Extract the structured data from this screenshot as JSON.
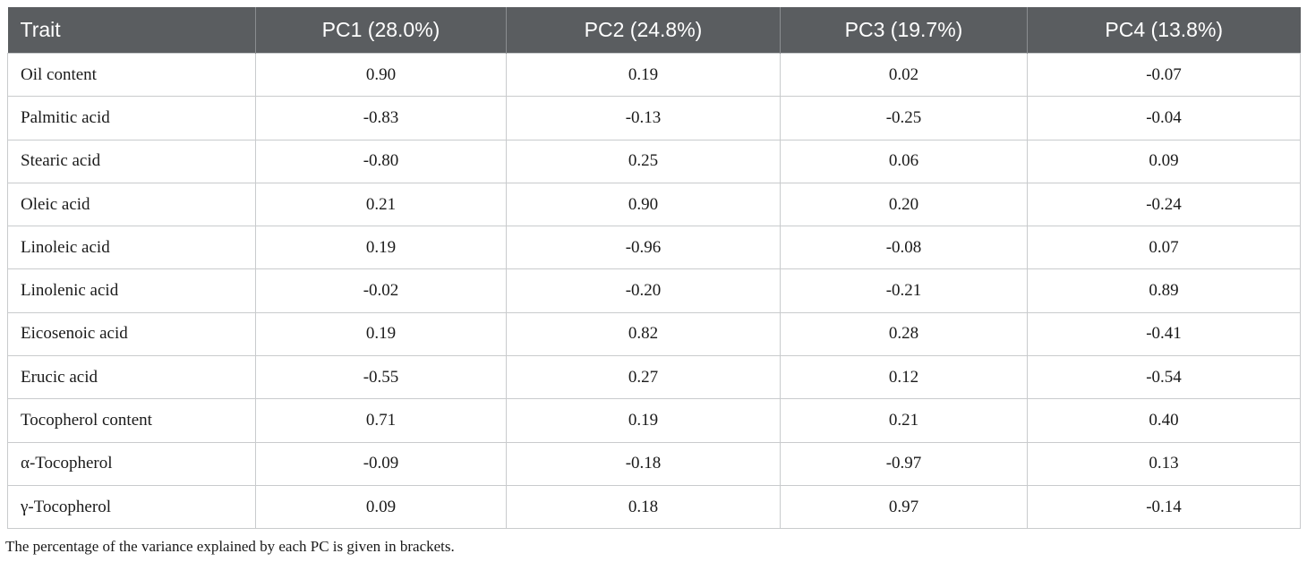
{
  "table": {
    "headers": [
      "Trait",
      "PC1 (28.0%)",
      "PC2 (24.8%)",
      "PC3 (19.7%)",
      "PC4 (13.8%)"
    ],
    "rows": [
      [
        "Oil content",
        "0.90",
        "0.19",
        "0.02",
        "-0.07"
      ],
      [
        "Palmitic acid",
        "-0.83",
        "-0.13",
        "-0.25",
        "-0.04"
      ],
      [
        "Stearic acid",
        "-0.80",
        "0.25",
        "0.06",
        "0.09"
      ],
      [
        "Oleic acid",
        "0.21",
        "0.90",
        "0.20",
        "-0.24"
      ],
      [
        "Linoleic acid",
        "0.19",
        "-0.96",
        "-0.08",
        "0.07"
      ],
      [
        "Linolenic acid",
        "-0.02",
        "-0.20",
        "-0.21",
        "0.89"
      ],
      [
        "Eicosenoic acid",
        "0.19",
        "0.82",
        "0.28",
        "-0.41"
      ],
      [
        "Erucic acid",
        "-0.55",
        "0.27",
        "0.12",
        "-0.54"
      ],
      [
        "Tocopherol content",
        "0.71",
        "0.19",
        "0.21",
        "0.40"
      ],
      [
        "α-Tocopherol",
        "-0.09",
        "-0.18",
        "-0.97",
        "0.13"
      ],
      [
        "γ-Tocopherol",
        "0.09",
        "0.18",
        "0.97",
        "-0.14"
      ]
    ]
  },
  "footnote": "The percentage of the variance explained by each PC is given in brackets."
}
